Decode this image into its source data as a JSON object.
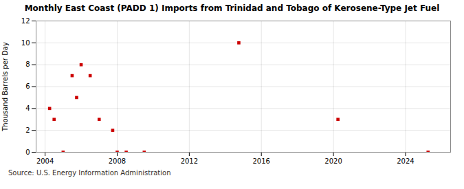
{
  "chart_data": {
    "type": "scatter",
    "title": "Monthly East Coast (PADD 1) Imports from Trinidad and Tobago of Kerosene-Type Jet Fuel",
    "ylabel": "Thousand Barrels per Day",
    "annotation": "Source: U.S. Energy Information Administration",
    "x": [
      2004.25,
      2004.5,
      2005.0,
      2005.5,
      2005.75,
      2006.0,
      2006.5,
      2007.0,
      2007.75,
      2008.0,
      2008.5,
      2009.5,
      2014.75,
      2020.25,
      2025.25
    ],
    "values": [
      4,
      3,
      0,
      7,
      5,
      8,
      7,
      3,
      2,
      0,
      0,
      0,
      10,
      3,
      0
    ],
    "color": "#cc0000",
    "marker": "square",
    "xlim": [
      2003.5,
      2026.5
    ],
    "xticks": [
      2004,
      2008,
      2012,
      2016,
      2020,
      2024
    ],
    "ylim": [
      0,
      12
    ],
    "yticks": [
      0,
      2,
      4,
      6,
      8,
      10,
      12
    ],
    "grid": true
  }
}
